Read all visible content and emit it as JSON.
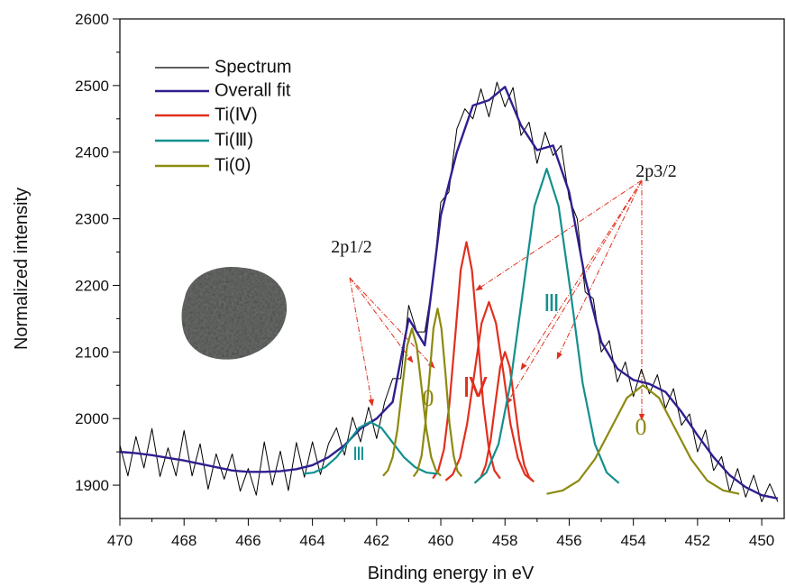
{
  "chart_data": {
    "type": "line",
    "xlabel": "Binding energy in eV",
    "ylabel": "Normalized intensity",
    "xlim": [
      470,
      449.3
    ],
    "ylim": [
      1850,
      2600
    ],
    "xticks": [
      470,
      468,
      466,
      464,
      462,
      460,
      458,
      456,
      454,
      452,
      450
    ],
    "yticks": [
      1900,
      2000,
      2100,
      2200,
      2300,
      2400,
      2500,
      2600
    ],
    "annotations": [
      "2p1/2",
      "2p3/2",
      "Ⅲ",
      "0",
      "Ⅳ",
      "Ⅲ",
      "0"
    ],
    "series": [
      {
        "name": "Spectrum",
        "color": "#000000",
        "x": [
          470,
          469.75,
          469.5,
          469.25,
          469,
          468.75,
          468.5,
          468.25,
          468,
          467.75,
          467.5,
          467.25,
          467,
          466.75,
          466.5,
          466.25,
          466,
          465.75,
          465.5,
          465.25,
          465,
          464.75,
          464.5,
          464.25,
          464,
          463.75,
          463.5,
          463.25,
          463,
          462.75,
          462.5,
          462.25,
          462,
          461.75,
          461.5,
          461.25,
          461,
          460.75,
          460.5,
          460.25,
          460,
          459.75,
          459.5,
          459.25,
          459,
          458.75,
          458.5,
          458.25,
          458,
          457.75,
          457.5,
          457.25,
          457,
          456.75,
          456.5,
          456.25,
          456,
          455.75,
          455.5,
          455.25,
          455,
          454.75,
          454.5,
          454.25,
          454,
          453.75,
          453.5,
          453.25,
          453,
          452.75,
          452.5,
          452.25,
          452,
          451.75,
          451.5,
          451.25,
          451,
          450.75,
          450.5,
          450.25,
          450,
          449.75,
          449.5
        ],
        "values": [
          1960,
          1914,
          1973,
          1926,
          1985,
          1913,
          1956,
          1914,
          1982,
          1914,
          1962,
          1894,
          1947,
          1909,
          1947,
          1891,
          1925,
          1885,
          1965,
          1900,
          1951,
          1892,
          1964,
          1912,
          1965,
          1916,
          1962,
          1986,
          1945,
          2002,
          1965,
          2017,
          1970,
          2025,
          2060,
          2060,
          2170,
          2130,
          2130,
          2205,
          2325,
          2340,
          2435,
          2465,
          2450,
          2495,
          2453,
          2505,
          2468,
          2497,
          2425,
          2445,
          2383,
          2430,
          2395,
          2410,
          2330,
          2300,
          2190,
          2180,
          2100,
          2117,
          2055,
          2085,
          2033,
          2074,
          2037,
          2066,
          2015,
          2045,
          1990,
          2007,
          1950,
          1983,
          1922,
          1943,
          1890,
          1925,
          1882,
          1915,
          1875,
          1902,
          1875
        ]
      },
      {
        "name": "Overall fit",
        "color": "#2e1f8f",
        "x": [
          470,
          469.5,
          469,
          468.5,
          468,
          467.5,
          467,
          466.5,
          466,
          465.5,
          465,
          464.5,
          464,
          463.5,
          463,
          462.5,
          462,
          461.5,
          461,
          460.5,
          460,
          459.5,
          459,
          458.5,
          458,
          457.5,
          457,
          456.5,
          456,
          455.5,
          455,
          454.5,
          454,
          453.5,
          453,
          452.5,
          452,
          451.5,
          451,
          450.5,
          450,
          449.5
        ],
        "values": [
          1950,
          1948,
          1945,
          1941,
          1937,
          1932,
          1927,
          1922,
          1920,
          1920,
          1921,
          1924,
          1930,
          1942,
          1960,
          1985,
          2000,
          2025,
          2150,
          2110,
          2305,
          2400,
          2470,
          2478,
          2498,
          2440,
          2403,
          2410,
          2340,
          2210,
          2115,
          2075,
          2058,
          2052,
          2040,
          2010,
          1975,
          1942,
          1915,
          1897,
          1885,
          1880
        ]
      },
      {
        "name": "Ti(Ⅳ)",
        "color": "#e0301e",
        "curves": [
          {
            "x": [
              460.25,
              460.08,
              459.9,
              459.73,
              459.55,
              459.38,
              459.2,
              459.03,
              458.85,
              458.68,
              458.5,
              458.33,
              458.15
            ],
            "values": [
              1910,
              1922,
              1954,
              2023,
              2124,
              2223,
              2265,
              2223,
              2124,
              2023,
              1954,
              1922,
              1910
            ]
          },
          {
            "x": [
              459.85,
              459.63,
              459.4,
              459.18,
              458.95,
              458.73,
              458.5,
              458.28,
              458.05,
              457.83,
              457.6,
              457.38,
              457.15
            ],
            "values": [
              1907,
              1916,
              1941,
              1992,
              2069,
              2143,
              2175,
              2143,
              2069,
              1992,
              1941,
              1916,
              1907
            ]
          },
          {
            "x": [
              458.9,
              458.75,
              458.6,
              458.45,
              458.3,
              458.15,
              458,
              457.85,
              457.7,
              457.55,
              457.4,
              457.25,
              457.1
            ],
            "values": [
              1905,
              1912,
              1930,
              1967,
              2023,
              2077,
              2100,
              2077,
              2023,
              1967,
              1930,
              1912,
              1905
            ]
          }
        ]
      },
      {
        "name": "Ti(Ⅲ)",
        "color": "#12908e",
        "curves": [
          {
            "x": [
              458.95,
              458.58,
              458.2,
              457.83,
              457.45,
              457.08,
              456.7,
              456.33,
              455.95,
              455.58,
              455.2,
              454.83,
              454.45
            ],
            "values": [
              1903,
              1919,
              1962,
              2053,
              2188,
              2319,
              2375,
              2319,
              2188,
              2053,
              1962,
              1919,
              1903
            ]
          },
          {
            "x": [
              464.3,
              463.95,
              463.6,
              463.25,
              462.9,
              462.55,
              462.2,
              461.85,
              461.5,
              461.15,
              460.8,
              460.45,
              460.1
            ],
            "values": [
              1917,
              1919,
              1927,
              1942,
              1964,
              1986,
              1995,
              1986,
              1964,
              1942,
              1927,
              1919,
              1917
            ]
          }
        ]
      },
      {
        "name": "Ti(0)",
        "color": "#8c8a10",
        "curves": [
          {
            "x": [
              461.8,
              461.65,
              461.5,
              461.35,
              461.2,
              461.05,
              460.9,
              460.75,
              460.6,
              460.45,
              460.3,
              460.15,
              460
            ],
            "values": [
              1914,
              1922,
              1942,
              1984,
              2047,
              2109,
              2135,
              2109,
              2047,
              1984,
              1942,
              1922,
              1914
            ]
          },
          {
            "x": [
              460.85,
              460.73,
              460.6,
              460.48,
              460.35,
              460.23,
              460.1,
              459.98,
              459.85,
              459.73,
              459.6,
              459.48,
              459.35
            ],
            "values": [
              1913,
              1921,
              1944,
              1993,
              2065,
              2135,
              2165,
              2135,
              2065,
              1993,
              1944,
              1921,
              1913
            ]
          },
          {
            "x": [
              456.7,
              456.2,
              455.7,
              455.2,
              454.7,
              454.2,
              453.7,
              453.2,
              452.7,
              452.2,
              451.7,
              451.2,
              450.7
            ],
            "values": [
              1887,
              1892,
              1907,
              1939,
              1985,
              2031,
              2050,
              2031,
              1985,
              1939,
              1907,
              1892,
              1887
            ]
          }
        ]
      }
    ]
  }
}
